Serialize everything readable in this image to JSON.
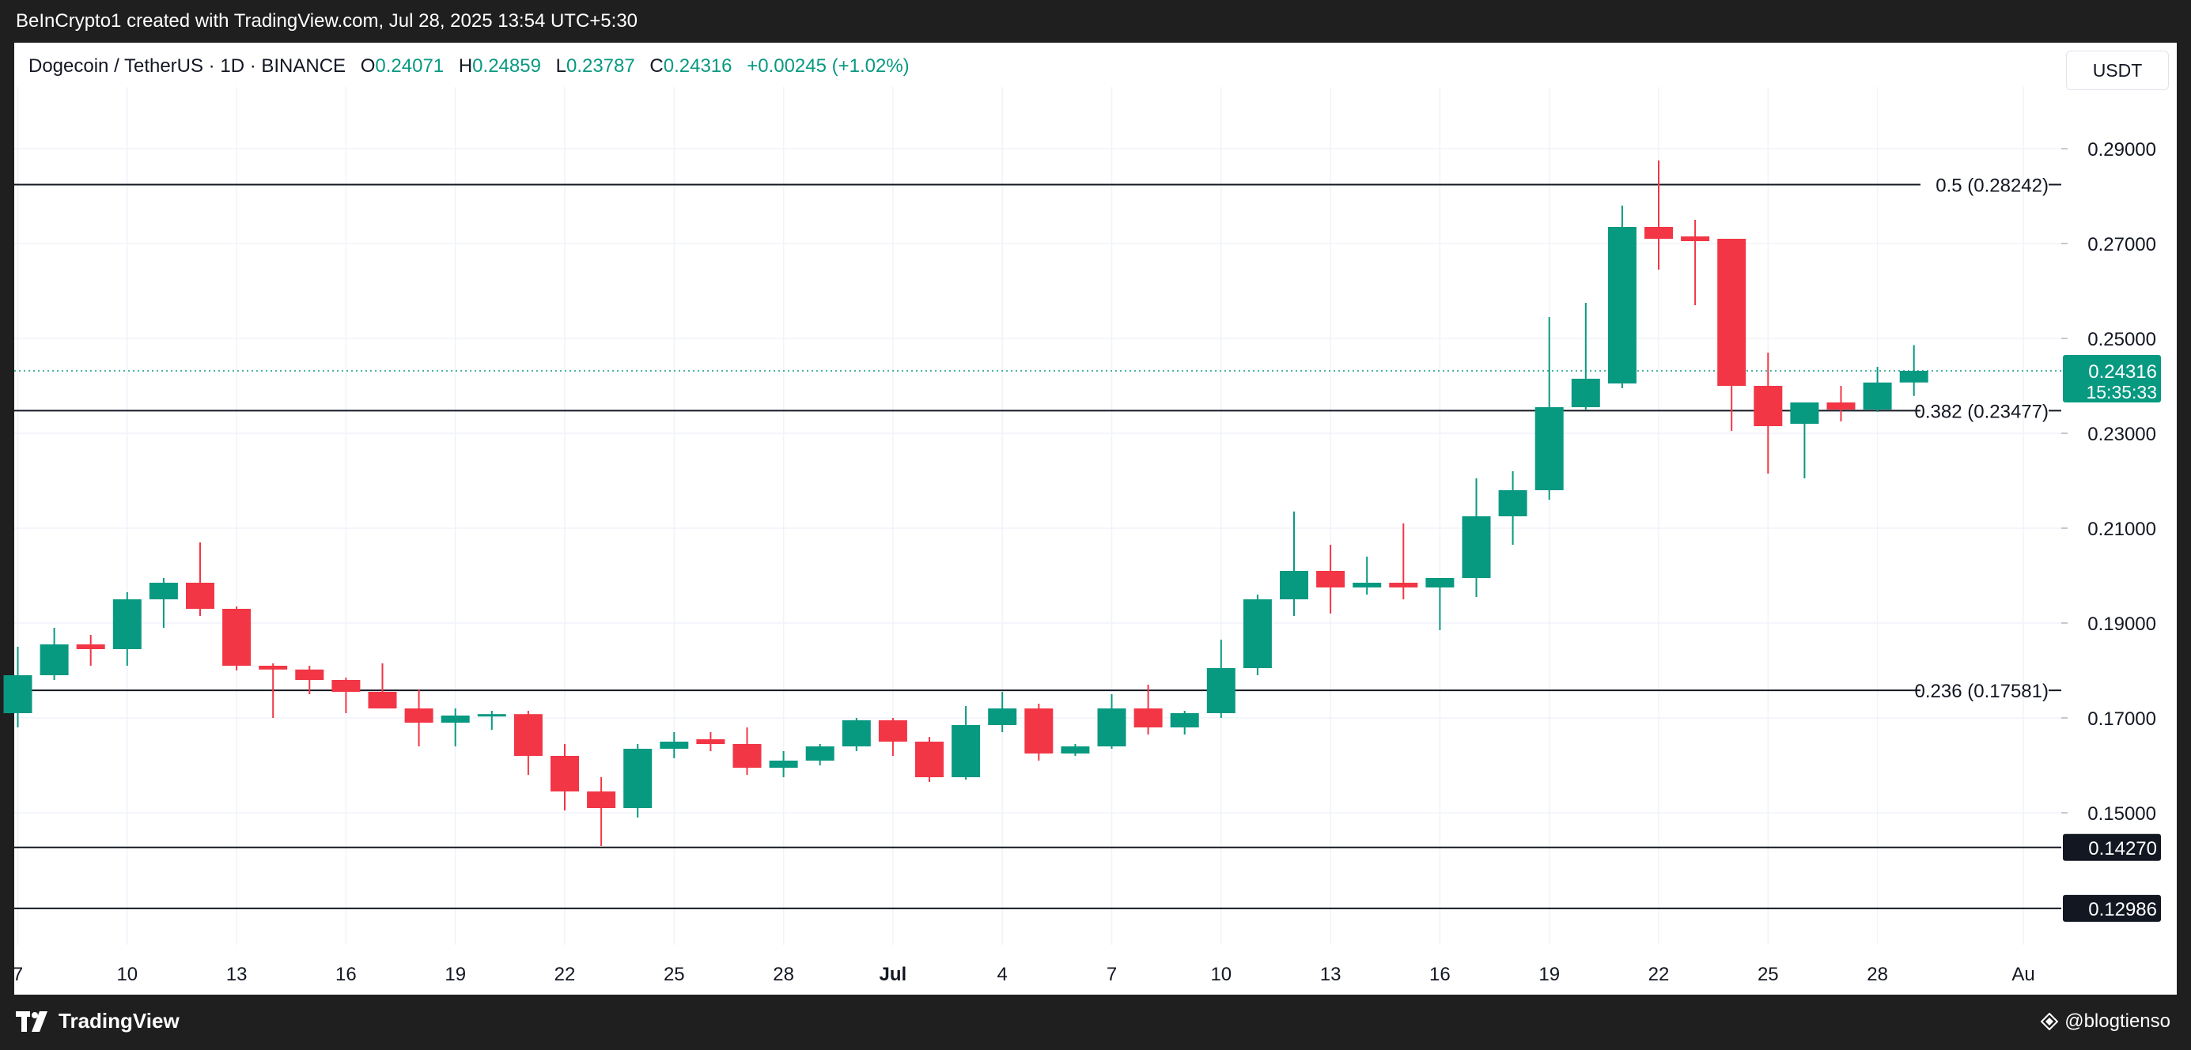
{
  "header": {
    "attribution": "BeInCrypto1 created with TradingView.com, Jul 28, 2025 13:54 UTC+5:30"
  },
  "legend": {
    "symbol": "Dogecoin / TetherUS · 1D · BINANCE",
    "o_label": "O",
    "o_value": "0.24071",
    "h_label": "H",
    "h_value": "0.24859",
    "l_label": "L",
    "l_value": "0.23787",
    "c_label": "C",
    "c_value": "0.24316",
    "change": "+0.00245 (+1.02%)"
  },
  "currency_button": "USDT",
  "footer": {
    "brand": "TradingView",
    "credit": "@blogtienso"
  },
  "colors": {
    "up": "#089981",
    "down": "#f23645",
    "background": "#ffffff",
    "frame": "#1f1f1f"
  },
  "chart_data": {
    "type": "candlestick",
    "symbol": "DOGEUSDT",
    "interval": "1D",
    "exchange": "BINANCE",
    "y_axis_labels": [
      "0.29000",
      "0.27000",
      "0.25000",
      "0.23000",
      "0.21000",
      "0.19000",
      "0.17000",
      "0.15000"
    ],
    "y_axis_values": [
      0.29,
      0.27,
      0.25,
      0.23,
      0.21,
      0.19,
      0.17,
      0.15
    ],
    "ylim": [
      0.124,
      0.301
    ],
    "x_axis_labels": [
      {
        "label": "7",
        "day": 0
      },
      {
        "label": "10",
        "day": 3
      },
      {
        "label": "13",
        "day": 6
      },
      {
        "label": "16",
        "day": 9
      },
      {
        "label": "19",
        "day": 12
      },
      {
        "label": "22",
        "day": 15
      },
      {
        "label": "25",
        "day": 18
      },
      {
        "label": "28",
        "day": 21
      },
      {
        "label": "Jul",
        "day": 24
      },
      {
        "label": "4",
        "day": 27
      },
      {
        "label": "7",
        "day": 30
      },
      {
        "label": "10",
        "day": 33
      },
      {
        "label": "13",
        "day": 36
      },
      {
        "label": "16",
        "day": 39
      },
      {
        "label": "19",
        "day": 42
      },
      {
        "label": "22",
        "day": 45
      },
      {
        "label": "25",
        "day": 48
      },
      {
        "label": "28",
        "day": 51
      },
      {
        "label": "Au",
        "day": 55
      }
    ],
    "fib_levels": [
      {
        "label": "0.5 (0.28242)",
        "value": 0.28242
      },
      {
        "label": "0.382 (0.23477)",
        "value": 0.23477
      },
      {
        "label": "0.236 (0.17581)",
        "value": 0.17581
      }
    ],
    "support_levels": [
      {
        "label": "0.14270",
        "value": 0.1427
      },
      {
        "label": "0.12986",
        "value": 0.12986
      }
    ],
    "current_price": {
      "label": "0.24316",
      "value": 0.24316,
      "countdown": "15:35:33"
    },
    "candles": [
      {
        "date": "2025-06-06",
        "o": 0.171,
        "h": 0.185,
        "l": 0.168,
        "c": 0.179
      },
      {
        "date": "2025-06-07",
        "o": 0.179,
        "h": 0.189,
        "l": 0.178,
        "c": 0.1855
      },
      {
        "date": "2025-06-08",
        "o": 0.1855,
        "h": 0.1875,
        "l": 0.181,
        "c": 0.1845
      },
      {
        "date": "2025-06-09",
        "o": 0.1845,
        "h": 0.1965,
        "l": 0.181,
        "c": 0.195
      },
      {
        "date": "2025-06-10",
        "o": 0.195,
        "h": 0.1995,
        "l": 0.189,
        "c": 0.1985
      },
      {
        "date": "2025-06-11",
        "o": 0.1985,
        "h": 0.207,
        "l": 0.1915,
        "c": 0.193
      },
      {
        "date": "2025-06-12",
        "o": 0.193,
        "h": 0.1935,
        "l": 0.18,
        "c": 0.181
      },
      {
        "date": "2025-06-13",
        "o": 0.181,
        "h": 0.1815,
        "l": 0.17,
        "c": 0.1802
      },
      {
        "date": "2025-06-14",
        "o": 0.1802,
        "h": 0.181,
        "l": 0.175,
        "c": 0.178
      },
      {
        "date": "2025-06-15",
        "o": 0.178,
        "h": 0.1785,
        "l": 0.171,
        "c": 0.1755
      },
      {
        "date": "2025-06-16",
        "o": 0.1755,
        "h": 0.1815,
        "l": 0.172,
        "c": 0.172
      },
      {
        "date": "2025-06-17",
        "o": 0.172,
        "h": 0.176,
        "l": 0.164,
        "c": 0.169
      },
      {
        "date": "2025-06-18",
        "o": 0.169,
        "h": 0.172,
        "l": 0.164,
        "c": 0.1705
      },
      {
        "date": "2025-06-19",
        "o": 0.1705,
        "h": 0.1715,
        "l": 0.1675,
        "c": 0.1708
      },
      {
        "date": "2025-06-20",
        "o": 0.1708,
        "h": 0.1715,
        "l": 0.158,
        "c": 0.162
      },
      {
        "date": "2025-06-21",
        "o": 0.162,
        "h": 0.1645,
        "l": 0.1505,
        "c": 0.1545
      },
      {
        "date": "2025-06-22",
        "o": 0.1545,
        "h": 0.1575,
        "l": 0.143,
        "c": 0.151
      },
      {
        "date": "2025-06-23",
        "o": 0.151,
        "h": 0.1645,
        "l": 0.149,
        "c": 0.1635
      },
      {
        "date": "2025-06-24",
        "o": 0.1635,
        "h": 0.167,
        "l": 0.1615,
        "c": 0.165
      },
      {
        "date": "2025-06-25",
        "o": 0.1655,
        "h": 0.167,
        "l": 0.163,
        "c": 0.1645
      },
      {
        "date": "2025-06-26",
        "o": 0.1645,
        "h": 0.168,
        "l": 0.158,
        "c": 0.1595
      },
      {
        "date": "2025-06-27",
        "o": 0.1595,
        "h": 0.163,
        "l": 0.1575,
        "c": 0.161
      },
      {
        "date": "2025-06-28",
        "o": 0.161,
        "h": 0.1645,
        "l": 0.16,
        "c": 0.164
      },
      {
        "date": "2025-06-29",
        "o": 0.164,
        "h": 0.17,
        "l": 0.163,
        "c": 0.1695
      },
      {
        "date": "2025-06-30",
        "o": 0.1695,
        "h": 0.17,
        "l": 0.162,
        "c": 0.165
      },
      {
        "date": "2025-07-01",
        "o": 0.165,
        "h": 0.166,
        "l": 0.1565,
        "c": 0.1575
      },
      {
        "date": "2025-07-02",
        "o": 0.1575,
        "h": 0.1725,
        "l": 0.157,
        "c": 0.1685
      },
      {
        "date": "2025-07-03",
        "o": 0.1685,
        "h": 0.1755,
        "l": 0.167,
        "c": 0.172
      },
      {
        "date": "2025-07-04",
        "o": 0.172,
        "h": 0.173,
        "l": 0.161,
        "c": 0.1625
      },
      {
        "date": "2025-07-05",
        "o": 0.1625,
        "h": 0.1645,
        "l": 0.162,
        "c": 0.164
      },
      {
        "date": "2025-07-06",
        "o": 0.164,
        "h": 0.175,
        "l": 0.1635,
        "c": 0.172
      },
      {
        "date": "2025-07-07",
        "o": 0.172,
        "h": 0.177,
        "l": 0.1665,
        "c": 0.168
      },
      {
        "date": "2025-07-08",
        "o": 0.168,
        "h": 0.1715,
        "l": 0.1665,
        "c": 0.171
      },
      {
        "date": "2025-07-09",
        "o": 0.171,
        "h": 0.1865,
        "l": 0.17,
        "c": 0.1805
      },
      {
        "date": "2025-07-10",
        "o": 0.1805,
        "h": 0.196,
        "l": 0.179,
        "c": 0.195
      },
      {
        "date": "2025-07-11",
        "o": 0.195,
        "h": 0.2135,
        "l": 0.1915,
        "c": 0.201
      },
      {
        "date": "2025-07-12",
        "o": 0.201,
        "h": 0.2065,
        "l": 0.192,
        "c": 0.1975
      },
      {
        "date": "2025-07-13",
        "o": 0.1975,
        "h": 0.204,
        "l": 0.196,
        "c": 0.1985
      },
      {
        "date": "2025-07-14",
        "o": 0.1985,
        "h": 0.211,
        "l": 0.195,
        "c": 0.1975
      },
      {
        "date": "2025-07-15",
        "o": 0.1975,
        "h": 0.1995,
        "l": 0.1885,
        "c": 0.1995
      },
      {
        "date": "2025-07-16",
        "o": 0.1995,
        "h": 0.2205,
        "l": 0.1955,
        "c": 0.2125
      },
      {
        "date": "2025-07-17",
        "o": 0.2125,
        "h": 0.222,
        "l": 0.2065,
        "c": 0.218
      },
      {
        "date": "2025-07-18",
        "o": 0.218,
        "h": 0.2545,
        "l": 0.216,
        "c": 0.2355
      },
      {
        "date": "2025-07-19",
        "o": 0.2355,
        "h": 0.2575,
        "l": 0.235,
        "c": 0.2415
      },
      {
        "date": "2025-07-20",
        "o": 0.2405,
        "h": 0.278,
        "l": 0.2395,
        "c": 0.2735
      },
      {
        "date": "2025-07-21",
        "o": 0.2735,
        "h": 0.2875,
        "l": 0.2645,
        "c": 0.271
      },
      {
        "date": "2025-07-22",
        "o": 0.2715,
        "h": 0.275,
        "l": 0.257,
        "c": 0.2705
      },
      {
        "date": "2025-07-23",
        "o": 0.271,
        "h": 0.271,
        "l": 0.2305,
        "c": 0.24
      },
      {
        "date": "2025-07-24",
        "o": 0.24,
        "h": 0.247,
        "l": 0.2215,
        "c": 0.2315
      },
      {
        "date": "2025-07-25",
        "o": 0.232,
        "h": 0.236,
        "l": 0.2205,
        "c": 0.2365
      },
      {
        "date": "2025-07-26",
        "o": 0.2365,
        "h": 0.24,
        "l": 0.2325,
        "c": 0.235
      },
      {
        "date": "2025-07-27",
        "o": 0.235,
        "h": 0.244,
        "l": 0.2345,
        "c": 0.2407
      },
      {
        "date": "2025-07-28",
        "o": 0.24071,
        "h": 0.24859,
        "l": 0.23787,
        "c": 0.24316
      }
    ]
  }
}
